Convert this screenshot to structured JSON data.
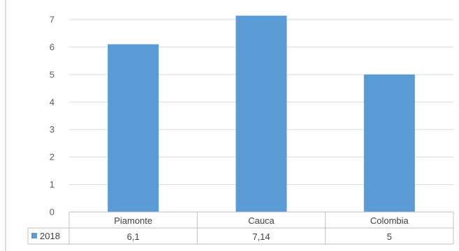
{
  "colors": {
    "bar": "#5b9bd5",
    "grid": "#d9d9d9",
    "axis": "#bfbfbf",
    "text": "#595959",
    "background": "#ffffff"
  },
  "chart_data": {
    "type": "bar",
    "categories": [
      "Piamonte",
      "Cauca",
      "Colombia"
    ],
    "series": [
      {
        "name": "2018",
        "values": [
          6.1,
          7.14,
          5
        ],
        "value_labels": [
          "6,1",
          "7,14",
          "5"
        ]
      }
    ],
    "ylim": [
      0,
      7
    ],
    "yticks": [
      "0",
      "1",
      "2",
      "3",
      "4",
      "5",
      "6",
      "7"
    ],
    "grid": true,
    "legend": "data-table-left",
    "data_table": true
  }
}
